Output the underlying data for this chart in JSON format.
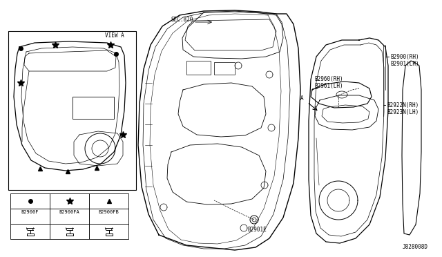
{
  "bg_color": "#ffffff",
  "diagram_id": "J828008D",
  "labels": {
    "sec820": "SEC.820",
    "part_b2901e": "B2901E",
    "part_b2900rh": "B2900(RH)",
    "part_b2901lh": "B2901(LH)",
    "part_b2960rh": "B2960(RH)",
    "part_b2961lh": "B2961(LH>",
    "part_b2922n_rh": "B2922N(RH)",
    "part_b2923n_lh": "B2923N(LH)",
    "view_a": "VIEW A",
    "part_b2900f": "B2900F",
    "part_b2900fa": "B2900FA",
    "part_b2900fb": "B2900FB",
    "part_b2960rh_clean": "B2960(RH)",
    "part_b2961lh_clean": "B2961(LH)"
  },
  "line_color": "#000000",
  "text_color": "#000000",
  "font_size": 5.5
}
